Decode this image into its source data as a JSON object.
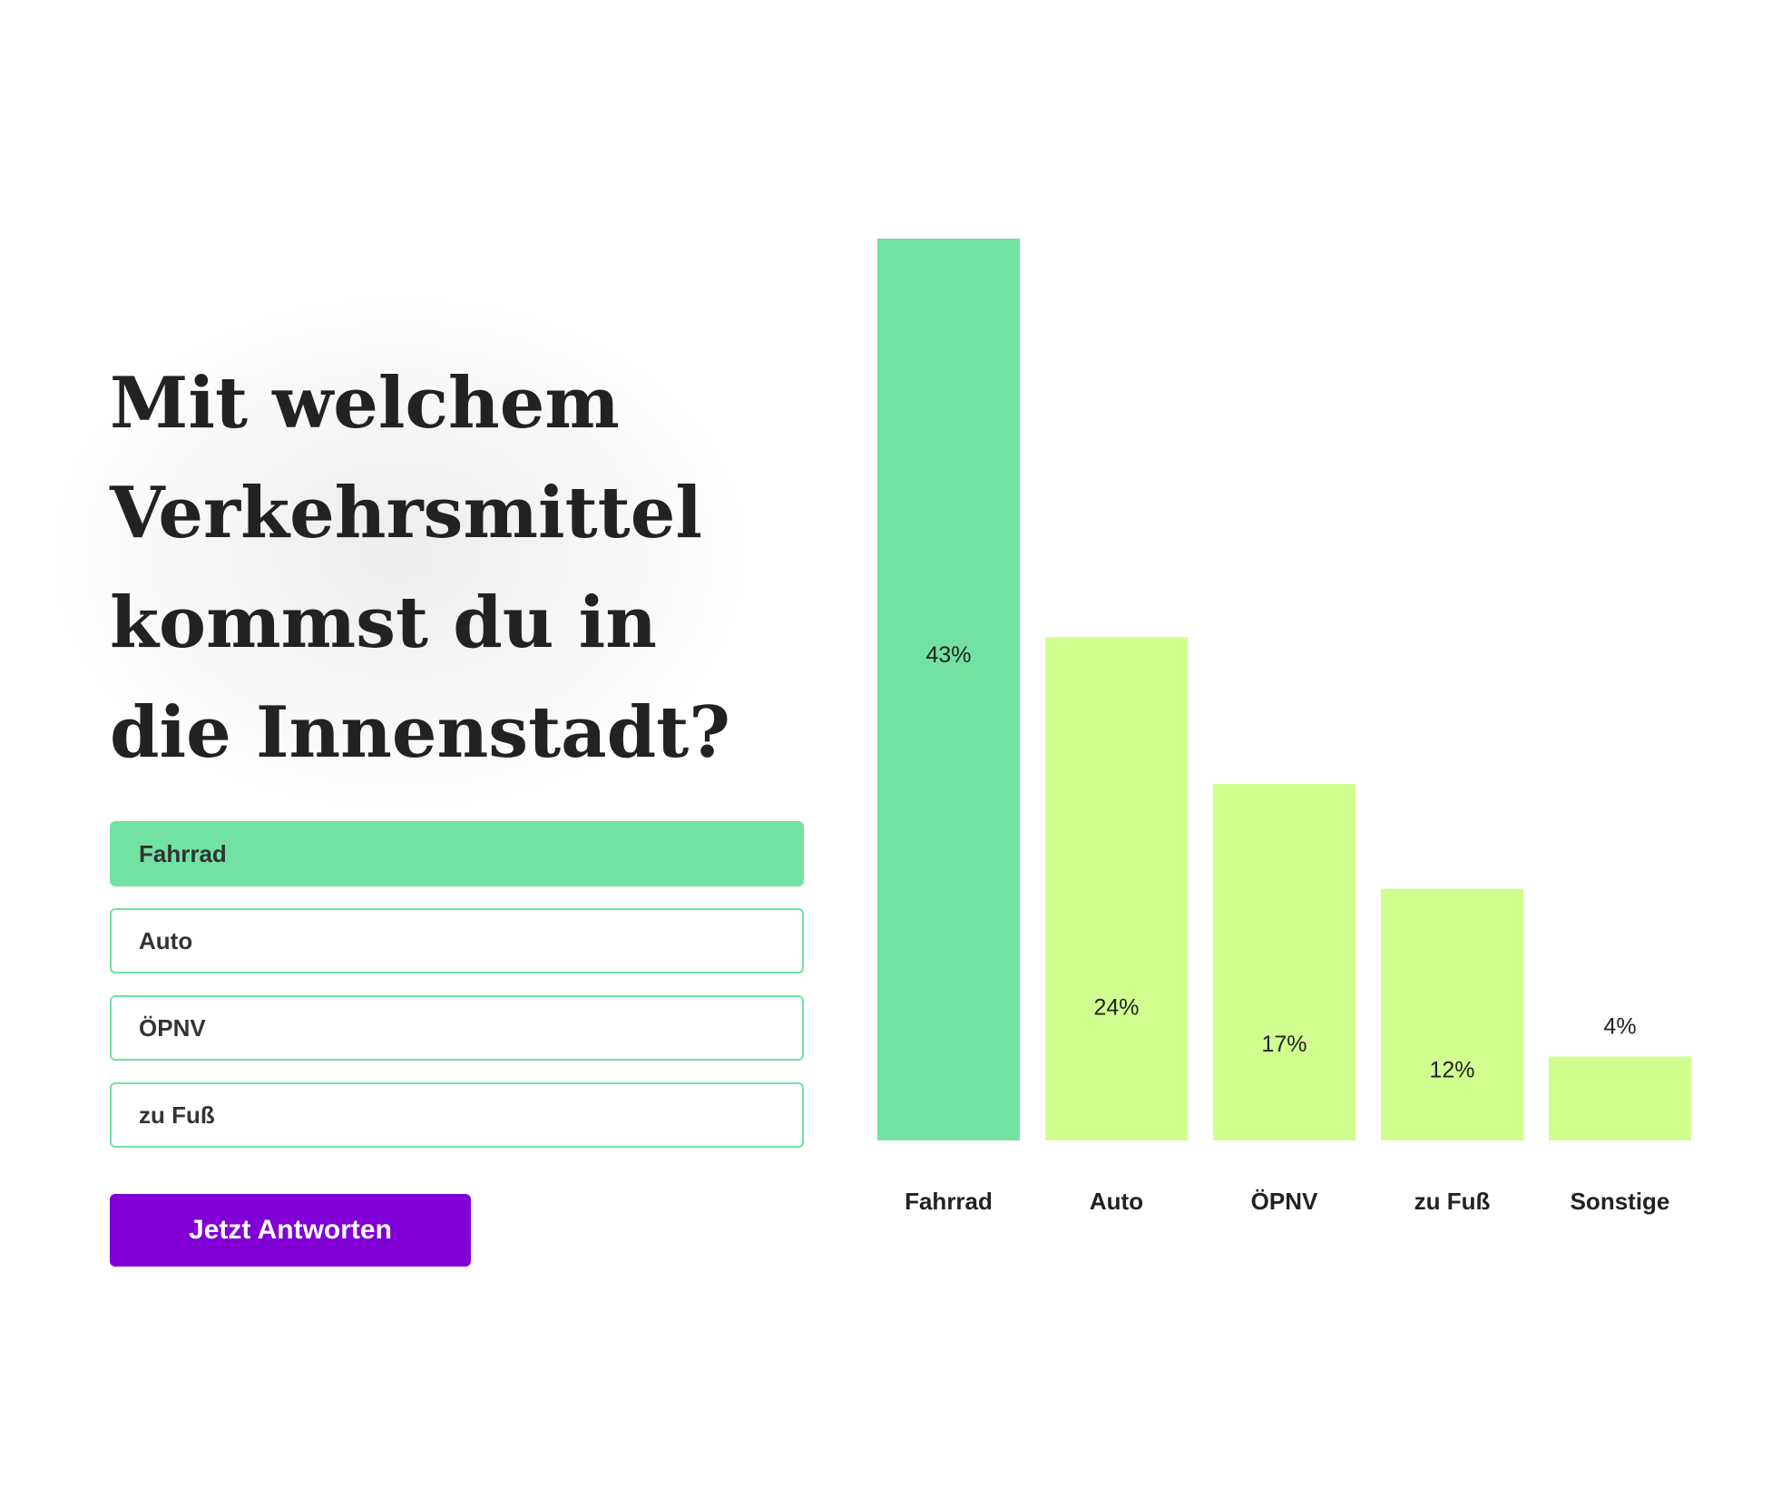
{
  "poll": {
    "question": "Mit welchem Verkehrsmittel kommst du in die Innenstadt?",
    "options": [
      {
        "label": "Fahrrad",
        "selected": true
      },
      {
        "label": "Auto",
        "selected": false
      },
      {
        "label": "ÖPNV",
        "selected": false
      },
      {
        "label": "zu Fuß",
        "selected": false
      }
    ],
    "submit_label": "Jetzt Antworten"
  },
  "colors": {
    "selected": "#72e2a3",
    "bar": "#d0ff8f",
    "button": "#8000d6",
    "text": "#222222"
  },
  "chart_data": {
    "type": "bar",
    "categories": [
      "Fahrrad",
      "Auto",
      "ÖPNV",
      "zu Fuß",
      "Sonstige"
    ],
    "values": [
      43,
      24,
      17,
      12,
      4
    ],
    "value_labels": [
      "43%",
      "24%",
      "17%",
      "12%",
      "4%"
    ],
    "highlight_index": 0,
    "ylim": [
      0,
      43
    ],
    "grid": false
  }
}
